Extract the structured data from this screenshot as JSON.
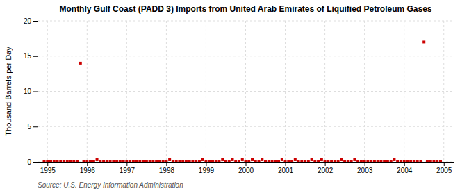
{
  "chart_data": {
    "type": "scatter",
    "title": "Monthly Gulf Coast (PADD 3) Imports from United Arab Emirates of Liquified Petroleum Gases",
    "ylabel": "Thousand Barrels per Day",
    "source": "Source: U.S. Energy Information Administration",
    "color": "#cc0000",
    "marker": "square",
    "grid": true,
    "xlim": [
      1994.75,
      2005.25
    ],
    "xticks": [
      1995,
      1996,
      1997,
      1998,
      1999,
      2000,
      2001,
      2002,
      2003,
      2004,
      2005
    ],
    "ylim": [
      0,
      20
    ],
    "yticks": [
      0,
      5,
      10,
      15,
      20
    ],
    "x": [
      1994.917,
      1995.0,
      1995.083,
      1995.167,
      1995.25,
      1995.333,
      1995.417,
      1995.5,
      1995.583,
      1995.667,
      1995.75,
      1995.833,
      1995.917,
      1996.0,
      1996.083,
      1996.167,
      1996.25,
      1996.333,
      1996.417,
      1996.5,
      1996.583,
      1996.667,
      1996.75,
      1996.833,
      1996.917,
      1997.0,
      1997.083,
      1997.167,
      1997.25,
      1997.333,
      1997.417,
      1997.5,
      1997.583,
      1997.667,
      1997.75,
      1997.833,
      1997.917,
      1998.0,
      1998.083,
      1998.167,
      1998.25,
      1998.333,
      1998.417,
      1998.5,
      1998.583,
      1998.667,
      1998.75,
      1998.833,
      1998.917,
      1999.0,
      1999.083,
      1999.167,
      1999.25,
      1999.333,
      1999.417,
      1999.5,
      1999.583,
      1999.667,
      1999.75,
      1999.833,
      1999.917,
      2000.0,
      2000.083,
      2000.167,
      2000.25,
      2000.333,
      2000.417,
      2000.5,
      2000.583,
      2000.667,
      2000.75,
      2000.833,
      2000.917,
      2001.0,
      2001.083,
      2001.167,
      2001.25,
      2001.333,
      2001.417,
      2001.5,
      2001.583,
      2001.667,
      2001.75,
      2001.833,
      2001.917,
      2002.0,
      2002.083,
      2002.167,
      2002.25,
      2002.333,
      2002.417,
      2002.5,
      2002.583,
      2002.667,
      2002.75,
      2002.833,
      2002.917,
      2003.0,
      2003.083,
      2003.167,
      2003.25,
      2003.333,
      2003.417,
      2003.5,
      2003.583,
      2003.667,
      2003.75,
      2003.833,
      2003.917,
      2004.0,
      2004.083,
      2004.167,
      2004.25,
      2004.333,
      2004.417,
      2004.5,
      2004.583,
      2004.667,
      2004.75,
      2004.833,
      2004.917
    ],
    "values": [
      0,
      0,
      0,
      0,
      0,
      0,
      0,
      0,
      0,
      0,
      0,
      14,
      0,
      0,
      0,
      0,
      0.3,
      0,
      0,
      0,
      0,
      0,
      0,
      0,
      0,
      0,
      0,
      0,
      0,
      0,
      0,
      0,
      0,
      0,
      0,
      0,
      0,
      0,
      0.3,
      0,
      0,
      0,
      0,
      0,
      0,
      0,
      0,
      0,
      0.3,
      0,
      0,
      0,
      0,
      0,
      0.3,
      0,
      0,
      0.3,
      0,
      0,
      0.3,
      0,
      0,
      0.3,
      0,
      0,
      0.3,
      0,
      0,
      0,
      0,
      0,
      0.3,
      0,
      0,
      0,
      0.3,
      0,
      0,
      0,
      0,
      0.3,
      0,
      0,
      0.3,
      0,
      0,
      0,
      0,
      0,
      0.3,
      0,
      0,
      0,
      0.3,
      0,
      0,
      0,
      0,
      0,
      0,
      0,
      0,
      0,
      0,
      0,
      0.3,
      0,
      0,
      0,
      0,
      0,
      0,
      0,
      0,
      17,
      0,
      0,
      0,
      0,
      0
    ]
  }
}
